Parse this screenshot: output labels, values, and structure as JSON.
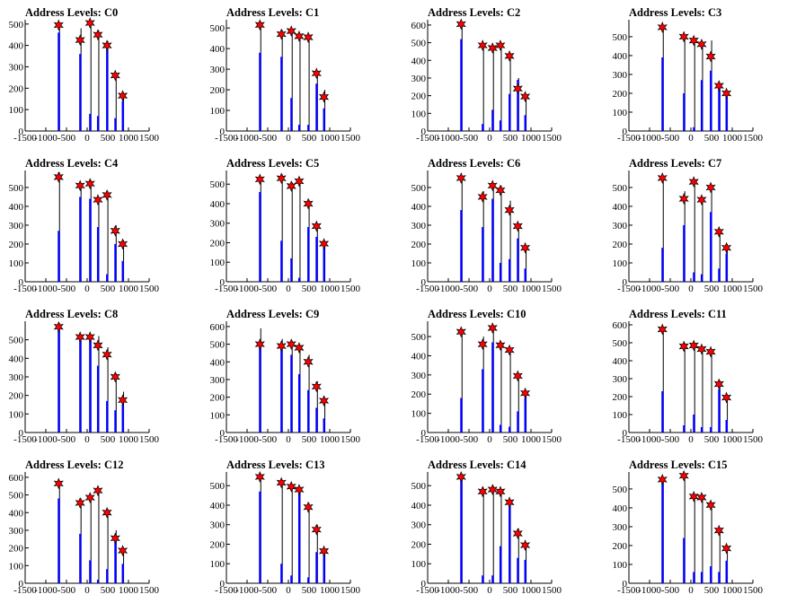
{
  "background": "#ffffff",
  "colors": {
    "bar": "#0000ff",
    "line": "#000000",
    "marker_fill": "#ff0000",
    "marker_stroke": "#000000"
  },
  "chart_data": [
    {
      "type": "bar",
      "title": "Address Levels: C0",
      "xlim": [
        -1500,
        1500
      ],
      "ylim": [
        0,
        520
      ],
      "xticks": [
        -1500,
        -1000,
        -500,
        0,
        500,
        1000,
        1500
      ],
      "yticks": [
        0,
        100,
        200,
        300,
        400,
        500
      ],
      "peaks": [
        {
          "x": -690,
          "bar": 460,
          "line": 500,
          "marker": 495
        },
        {
          "x": -170,
          "bar": 360,
          "line": 480,
          "marker": 425
        },
        {
          "x": 70,
          "bar": 80,
          "line": 500,
          "marker": 505
        },
        {
          "x": 260,
          "bar": 70,
          "line": 470,
          "marker": 450
        },
        {
          "x": 480,
          "bar": 380,
          "line": 420,
          "marker": 400
        },
        {
          "x": 680,
          "bar": 60,
          "line": 270,
          "marker": 260
        },
        {
          "x": 860,
          "bar": 140,
          "line": 180,
          "marker": 165
        }
      ]
    },
    {
      "type": "bar",
      "title": "Address Levels: C1",
      "xlim": [
        -1500,
        1500
      ],
      "ylim": [
        0,
        540
      ],
      "xticks": [
        -1500,
        -1000,
        -500,
        0,
        500,
        1000,
        1500
      ],
      "yticks": [
        0,
        100,
        200,
        300,
        400,
        500
      ],
      "peaks": [
        {
          "x": -690,
          "bar": 380,
          "line": 530,
          "marker": 515
        },
        {
          "x": -170,
          "bar": 360,
          "line": 490,
          "marker": 470
        },
        {
          "x": 70,
          "bar": 160,
          "line": 490,
          "marker": 485
        },
        {
          "x": 260,
          "bar": 30,
          "line": 470,
          "marker": 460
        },
        {
          "x": 480,
          "bar": 30,
          "line": 465,
          "marker": 455
        },
        {
          "x": 680,
          "bar": 230,
          "line": 290,
          "marker": 280
        },
        {
          "x": 860,
          "bar": 110,
          "line": 200,
          "marker": 165
        }
      ]
    },
    {
      "type": "bar",
      "title": "Address Levels: C2",
      "xlim": [
        -1500,
        1500
      ],
      "ylim": [
        0,
        630
      ],
      "xticks": [
        -1500,
        -1000,
        -500,
        0,
        500,
        1000,
        1500
      ],
      "yticks": [
        0,
        100,
        200,
        300,
        400,
        500,
        600
      ],
      "peaks": [
        {
          "x": -690,
          "bar": 520,
          "line": 610,
          "marker": 605
        },
        {
          "x": -170,
          "bar": 40,
          "line": 500,
          "marker": 485
        },
        {
          "x": 70,
          "bar": 120,
          "line": 480,
          "marker": 470
        },
        {
          "x": 260,
          "bar": 60,
          "line": 490,
          "marker": 485
        },
        {
          "x": 480,
          "bar": 210,
          "line": 440,
          "marker": 425
        },
        {
          "x": 680,
          "bar": 290,
          "line": 300,
          "marker": 240
        },
        {
          "x": 860,
          "bar": 90,
          "line": 200,
          "marker": 195
        }
      ]
    },
    {
      "type": "bar",
      "title": "Address Levels: C3",
      "xlim": [
        -1500,
        1500
      ],
      "ylim": [
        0,
        590
      ],
      "xticks": [
        -1500,
        -1000,
        -500,
        0,
        500,
        1000,
        1500
      ],
      "yticks": [
        0,
        100,
        200,
        300,
        400,
        500
      ],
      "peaks": [
        {
          "x": -690,
          "bar": 390,
          "line": 560,
          "marker": 550
        },
        {
          "x": -170,
          "bar": 200,
          "line": 510,
          "marker": 500
        },
        {
          "x": 70,
          "bar": 20,
          "line": 490,
          "marker": 480
        },
        {
          "x": 260,
          "bar": 270,
          "line": 470,
          "marker": 460
        },
        {
          "x": 480,
          "bar": 320,
          "line": 480,
          "marker": 395
        },
        {
          "x": 680,
          "bar": 250,
          "line": 250,
          "marker": 240
        },
        {
          "x": 860,
          "bar": 190,
          "line": 210,
          "marker": 200
        }
      ]
    },
    {
      "type": "bar",
      "title": "Address Levels: C4",
      "xlim": [
        -1500,
        1500
      ],
      "ylim": [
        0,
        590
      ],
      "xticks": [
        -1500,
        -1000,
        -500,
        0,
        500,
        1000,
        1500
      ],
      "yticks": [
        0,
        100,
        200,
        300,
        400,
        500
      ],
      "peaks": [
        {
          "x": -690,
          "bar": 270,
          "line": 580,
          "marker": 555
        },
        {
          "x": -170,
          "bar": 450,
          "line": 520,
          "marker": 510
        },
        {
          "x": 70,
          "bar": 440,
          "line": 540,
          "marker": 520
        },
        {
          "x": 260,
          "bar": 290,
          "line": 440,
          "marker": 435
        },
        {
          "x": 480,
          "bar": 40,
          "line": 480,
          "marker": 460
        },
        {
          "x": 680,
          "bar": 200,
          "line": 300,
          "marker": 270
        },
        {
          "x": 860,
          "bar": 110,
          "line": 220,
          "marker": 200
        }
      ]
    },
    {
      "type": "bar",
      "title": "Address Levels: C5",
      "xlim": [
        -1500,
        1500
      ],
      "ylim": [
        0,
        570
      ],
      "xticks": [
        -1500,
        -1000,
        -500,
        0,
        500,
        1000,
        1500
      ],
      "yticks": [
        0,
        100,
        200,
        300,
        400,
        500
      ],
      "peaks": [
        {
          "x": -690,
          "bar": 460,
          "line": 540,
          "marker": 525
        },
        {
          "x": -170,
          "bar": 210,
          "line": 550,
          "marker": 530
        },
        {
          "x": 70,
          "bar": 120,
          "line": 510,
          "marker": 490
        },
        {
          "x": 260,
          "bar": 20,
          "line": 520,
          "marker": 515
        },
        {
          "x": 480,
          "bar": 280,
          "line": 420,
          "marker": 400
        },
        {
          "x": 680,
          "bar": 230,
          "line": 300,
          "marker": 285
        },
        {
          "x": 860,
          "bar": 200,
          "line": 210,
          "marker": 195
        }
      ]
    },
    {
      "type": "bar",
      "title": "Address Levels: C6",
      "xlim": [
        -1500,
        1500
      ],
      "ylim": [
        0,
        590
      ],
      "xticks": [
        -1500,
        -1000,
        -500,
        0,
        500,
        1000,
        1500
      ],
      "yticks": [
        0,
        100,
        200,
        300,
        400,
        500
      ],
      "peaks": [
        {
          "x": -690,
          "bar": 380,
          "line": 560,
          "marker": 550
        },
        {
          "x": -170,
          "bar": 290,
          "line": 480,
          "marker": 450
        },
        {
          "x": 70,
          "bar": 440,
          "line": 520,
          "marker": 510
        },
        {
          "x": 260,
          "bar": 100,
          "line": 510,
          "marker": 485
        },
        {
          "x": 480,
          "bar": 120,
          "line": 430,
          "marker": 380
        },
        {
          "x": 680,
          "bar": 230,
          "line": 310,
          "marker": 295
        },
        {
          "x": 860,
          "bar": 70,
          "line": 195,
          "marker": 180
        }
      ]
    },
    {
      "type": "bar",
      "title": "Address Levels: C7",
      "xlim": [
        -1500,
        1500
      ],
      "ylim": [
        0,
        590
      ],
      "xticks": [
        -1500,
        -1000,
        -500,
        0,
        500,
        1000,
        1500
      ],
      "yticks": [
        0,
        100,
        200,
        300,
        400,
        500
      ],
      "peaks": [
        {
          "x": -690,
          "bar": 180,
          "line": 560,
          "marker": 550
        },
        {
          "x": -170,
          "bar": 300,
          "line": 480,
          "marker": 440
        },
        {
          "x": 70,
          "bar": 50,
          "line": 540,
          "marker": 530
        },
        {
          "x": 260,
          "bar": 40,
          "line": 450,
          "marker": 435
        },
        {
          "x": 480,
          "bar": 370,
          "line": 500,
          "marker": 500
        },
        {
          "x": 680,
          "bar": 70,
          "line": 280,
          "marker": 265
        },
        {
          "x": 860,
          "bar": 150,
          "line": 200,
          "marker": 180
        }
      ]
    },
    {
      "type": "bar",
      "title": "Address Levels: C8",
      "xlim": [
        -1500,
        1500
      ],
      "ylim": [
        0,
        600
      ],
      "xticks": [
        -1500,
        -1000,
        -500,
        0,
        500,
        1000,
        1500
      ],
      "yticks": [
        0,
        100,
        200,
        300,
        400,
        500
      ],
      "peaks": [
        {
          "x": -690,
          "bar": 560,
          "line": 590,
          "marker": 570
        },
        {
          "x": -170,
          "bar": 500,
          "line": 520,
          "marker": 515
        },
        {
          "x": 70,
          "bar": 510,
          "line": 530,
          "marker": 515
        },
        {
          "x": 260,
          "bar": 360,
          "line": 520,
          "marker": 470
        },
        {
          "x": 480,
          "bar": 170,
          "line": 460,
          "marker": 420
        },
        {
          "x": 680,
          "bar": 120,
          "line": 320,
          "marker": 300
        },
        {
          "x": 860,
          "bar": 150,
          "line": 220,
          "marker": 175
        }
      ]
    },
    {
      "type": "bar",
      "title": "Address Levels: C9",
      "xlim": [
        -1500,
        1500
      ],
      "ylim": [
        0,
        630
      ],
      "xticks": [
        -1500,
        -1000,
        -500,
        0,
        500,
        1000,
        1500
      ],
      "yticks": [
        0,
        100,
        200,
        300,
        400,
        500,
        600
      ],
      "peaks": [
        {
          "x": -690,
          "bar": 490,
          "line": 590,
          "marker": 500
        },
        {
          "x": -170,
          "bar": 490,
          "line": 530,
          "marker": 490
        },
        {
          "x": 70,
          "bar": 440,
          "line": 520,
          "marker": 500
        },
        {
          "x": 260,
          "bar": 330,
          "line": 490,
          "marker": 480
        },
        {
          "x": 480,
          "bar": 240,
          "line": 440,
          "marker": 400
        },
        {
          "x": 680,
          "bar": 140,
          "line": 290,
          "marker": 260
        },
        {
          "x": 860,
          "bar": 80,
          "line": 200,
          "marker": 180
        }
      ]
    },
    {
      "type": "bar",
      "title": "Address Levels: C10",
      "xlim": [
        -1500,
        1500
      ],
      "ylim": [
        0,
        580
      ],
      "xticks": [
        -1500,
        -1000,
        -500,
        0,
        500,
        1000,
        1500
      ],
      "yticks": [
        0,
        100,
        200,
        300,
        400,
        500
      ],
      "peaks": [
        {
          "x": -690,
          "bar": 180,
          "line": 540,
          "marker": 525
        },
        {
          "x": -170,
          "bar": 330,
          "line": 500,
          "marker": 460
        },
        {
          "x": 70,
          "bar": 470,
          "line": 560,
          "marker": 545
        },
        {
          "x": 260,
          "bar": 40,
          "line": 470,
          "marker": 455
        },
        {
          "x": 480,
          "bar": 30,
          "line": 440,
          "marker": 430
        },
        {
          "x": 680,
          "bar": 110,
          "line": 300,
          "marker": 295
        },
        {
          "x": 860,
          "bar": 180,
          "line": 210,
          "marker": 205
        }
      ]
    },
    {
      "type": "bar",
      "title": "Address Levels: C11",
      "xlim": [
        -1500,
        1500
      ],
      "ylim": [
        0,
        620
      ],
      "xticks": [
        -1500,
        -1000,
        -500,
        0,
        500,
        1000,
        1500
      ],
      "yticks": [
        0,
        100,
        200,
        300,
        400,
        500,
        600
      ],
      "peaks": [
        {
          "x": -690,
          "bar": 230,
          "line": 590,
          "marker": 575
        },
        {
          "x": -170,
          "bar": 40,
          "line": 500,
          "marker": 480
        },
        {
          "x": 70,
          "bar": 100,
          "line": 500,
          "marker": 485
        },
        {
          "x": 260,
          "bar": 30,
          "line": 470,
          "marker": 465
        },
        {
          "x": 480,
          "bar": 30,
          "line": 460,
          "marker": 450
        },
        {
          "x": 680,
          "bar": 240,
          "line": 290,
          "marker": 270
        },
        {
          "x": 860,
          "bar": 70,
          "line": 210,
          "marker": 195
        }
      ]
    },
    {
      "type": "bar",
      "title": "Address Levels: C12",
      "xlim": [
        -1500,
        1500
      ],
      "ylim": [
        0,
        630
      ],
      "xticks": [
        -1500,
        -1000,
        -500,
        0,
        500,
        1000,
        1500
      ],
      "yticks": [
        0,
        100,
        200,
        300,
        400,
        500,
        600
      ],
      "peaks": [
        {
          "x": -690,
          "bar": 480,
          "line": 580,
          "marker": 565
        },
        {
          "x": -170,
          "bar": 280,
          "line": 480,
          "marker": 455
        },
        {
          "x": 70,
          "bar": 130,
          "line": 500,
          "marker": 485
        },
        {
          "x": 260,
          "bar": 20,
          "line": 540,
          "marker": 525
        },
        {
          "x": 480,
          "bar": 80,
          "line": 420,
          "marker": 400
        },
        {
          "x": 680,
          "bar": 240,
          "line": 300,
          "marker": 255
        },
        {
          "x": 860,
          "bar": 110,
          "line": 200,
          "marker": 185
        }
      ]
    },
    {
      "type": "bar",
      "title": "Address Levels: C13",
      "xlim": [
        -1500,
        1500
      ],
      "ylim": [
        0,
        570
      ],
      "xticks": [
        -1500,
        -1000,
        -500,
        0,
        500,
        1000,
        1500
      ],
      "yticks": [
        0,
        100,
        200,
        300,
        400,
        500
      ],
      "peaks": [
        {
          "x": -690,
          "bar": 470,
          "line": 560,
          "marker": 545
        },
        {
          "x": -170,
          "bar": 100,
          "line": 530,
          "marker": 515
        },
        {
          "x": 70,
          "bar": 40,
          "line": 500,
          "marker": 495
        },
        {
          "x": 260,
          "bar": 460,
          "line": 480,
          "marker": 480
        },
        {
          "x": 480,
          "bar": 30,
          "line": 410,
          "marker": 390
        },
        {
          "x": 680,
          "bar": 160,
          "line": 300,
          "marker": 275
        },
        {
          "x": 860,
          "bar": 150,
          "line": 180,
          "marker": 165
        }
      ]
    },
    {
      "type": "bar",
      "title": "Address Levels: C14",
      "xlim": [
        -1500,
        1500
      ],
      "ylim": [
        0,
        570
      ],
      "xticks": [
        -1500,
        -1000,
        -500,
        0,
        500,
        1000,
        1500
      ],
      "yticks": [
        0,
        100,
        200,
        300,
        400,
        500
      ],
      "peaks": [
        {
          "x": -690,
          "bar": 530,
          "line": 560,
          "marker": 545
        },
        {
          "x": -170,
          "bar": 40,
          "line": 490,
          "marker": 470
        },
        {
          "x": 70,
          "bar": 40,
          "line": 500,
          "marker": 480
        },
        {
          "x": 260,
          "bar": 190,
          "line": 480,
          "marker": 470
        },
        {
          "x": 480,
          "bar": 400,
          "line": 420,
          "marker": 415
        },
        {
          "x": 680,
          "bar": 130,
          "line": 280,
          "marker": 255
        },
        {
          "x": 860,
          "bar": 120,
          "line": 210,
          "marker": 195
        }
      ]
    },
    {
      "type": "bar",
      "title": "Address Levels: C15",
      "xlim": [
        -1500,
        1500
      ],
      "ylim": [
        0,
        590
      ],
      "xticks": [
        -1500,
        -1000,
        -500,
        0,
        500,
        1000,
        1500
      ],
      "yticks": [
        0,
        100,
        200,
        300,
        400,
        500
      ],
      "peaks": [
        {
          "x": -690,
          "bar": 530,
          "line": 560,
          "marker": 550
        },
        {
          "x": -170,
          "bar": 240,
          "line": 580,
          "marker": 570
        },
        {
          "x": 70,
          "bar": 60,
          "line": 470,
          "marker": 460
        },
        {
          "x": 260,
          "bar": 60,
          "line": 470,
          "marker": 455
        },
        {
          "x": 480,
          "bar": 90,
          "line": 430,
          "marker": 415
        },
        {
          "x": 680,
          "bar": 60,
          "line": 290,
          "marker": 280
        },
        {
          "x": 860,
          "bar": 120,
          "line": 200,
          "marker": 185
        }
      ]
    }
  ]
}
